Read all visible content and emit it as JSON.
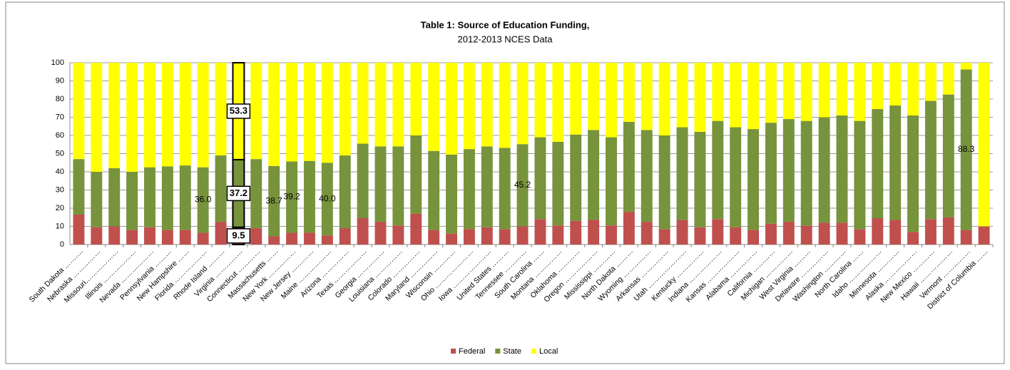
{
  "chart_data": {
    "type": "stacked-bar",
    "title": "Table 1: Source of Education Funding,",
    "subtitle": "2012-2013 NCES Data",
    "categories": [
      "South Dakota ……….",
      "Nebraska ……………",
      "Missouri………………",
      "Illinois ………………",
      "Nevada ………………",
      "Pennsylvania ………",
      "New Hampshire ……",
      "Florida ………………",
      "Rhode Island ………",
      "Virginia ……………",
      "Connecticut …………",
      "Massachusetts ……",
      "New York ……………",
      "New Jersey …………",
      "Maine ………………",
      "Arizona ……………",
      "Texas ………………",
      "Georgia ……………",
      "Louisiana ……………",
      "Colorado ……………",
      "Maryland ……………",
      "Wisconsin …………",
      "Ohio …………………",
      "Iowa …………………",
      "United States ………",
      "Tennessee …………",
      "South Carolina ……",
      "Montana ……………",
      "Oklahoma …………",
      "Oregon ………………",
      "Mississippi …………",
      "North Dakota ………",
      "Wyoming ……………",
      "Arkansas ……………",
      "Utah …………………",
      "Kentucky ……………",
      "Indiana ………………",
      "Kansas ………………",
      "Alabama ……………",
      "California …………",
      "Michigan ……………",
      "West Virginia ………",
      "Delaware ……………",
      "Washington …………",
      "North Carolina ……",
      "Idaho ………………",
      "Minnesota …………",
      "Alaska ………………",
      "New Mexico …………",
      "Hawaii ………………",
      "Vermont ……………",
      "District of Columbia ……"
    ],
    "series": [
      {
        "name": "Federal",
        "color": "#c0504d",
        "values": [
          16.5,
          9.5,
          10,
          8,
          9.5,
          8,
          8,
          6.5,
          12.5,
          9.5,
          9,
          4.5,
          6.5,
          6.5,
          5,
          9,
          14.5,
          12.5,
          10.5,
          17,
          8,
          6,
          8.5,
          9.5,
          8.5,
          10,
          14,
          10.5,
          13,
          13.5,
          10.5,
          18,
          12.5,
          8.5,
          13.5,
          9.5,
          14,
          9.5,
          8,
          11.5,
          12.5,
          10.5,
          12,
          12,
          8.5,
          14.5,
          13.5,
          7,
          14,
          15,
          8,
          10
        ],
        "value_labels": [
          null,
          null,
          null,
          null,
          null,
          null,
          null,
          null,
          null,
          "9.5",
          null,
          null,
          null,
          null,
          null,
          null,
          null,
          null,
          null,
          null,
          null,
          null,
          null,
          null,
          null,
          null,
          null,
          null,
          null,
          null,
          null,
          null,
          null,
          null,
          null,
          null,
          null,
          null,
          null,
          null,
          null,
          null,
          null,
          null,
          null,
          null,
          null,
          null,
          null,
          null,
          null,
          null
        ]
      },
      {
        "name": "State",
        "color": "#77933c",
        "values": [
          30.5,
          30.5,
          32,
          32,
          33,
          35,
          35.5,
          36,
          36.5,
          37.2,
          38,
          38.7,
          39.2,
          39.5,
          40,
          40,
          41,
          41.5,
          43.5,
          43,
          43.5,
          43.5,
          44,
          44.5,
          44.7,
          45.2,
          45,
          46,
          47.5,
          49.5,
          48.5,
          49.5,
          50.5,
          51.5,
          51,
          52.5,
          54,
          55,
          55.5,
          55.5,
          56.5,
          57.5,
          58,
          59,
          59.5,
          60,
          63,
          64,
          65,
          67.5,
          88.3,
          0
        ],
        "value_labels": [
          null,
          null,
          null,
          null,
          null,
          null,
          null,
          "36.0",
          null,
          "37.2",
          null,
          "38.7",
          "39.2",
          null,
          "40.0",
          null,
          null,
          null,
          null,
          null,
          null,
          null,
          null,
          null,
          null,
          "45.2",
          null,
          null,
          null,
          null,
          null,
          null,
          null,
          null,
          null,
          null,
          null,
          null,
          null,
          null,
          null,
          null,
          null,
          null,
          null,
          null,
          null,
          null,
          null,
          null,
          "88.3",
          null
        ]
      },
      {
        "name": "Local",
        "color": "#ffff00",
        "values": [
          53,
          60,
          58,
          60,
          57.5,
          57,
          56.5,
          57.5,
          51,
          53.3,
          53,
          56.8,
          54.3,
          54,
          55,
          51,
          44.5,
          46,
          46,
          40,
          48.5,
          50.5,
          47.5,
          46,
          46.8,
          44.8,
          41,
          43.5,
          39.5,
          37,
          41,
          32.5,
          37,
          40,
          35.5,
          38,
          32,
          35.5,
          36.5,
          33,
          31,
          32,
          30,
          29,
          32,
          25.5,
          23.5,
          29,
          21,
          17.5,
          3.7,
          90
        ],
        "value_labels": [
          null,
          null,
          null,
          null,
          null,
          null,
          null,
          null,
          null,
          "53.3",
          null,
          null,
          null,
          null,
          null,
          null,
          null,
          null,
          null,
          null,
          null,
          null,
          null,
          null,
          null,
          null,
          null,
          null,
          null,
          null,
          null,
          null,
          null,
          null,
          null,
          null,
          null,
          null,
          null,
          null,
          null,
          null,
          null,
          null,
          null,
          null,
          null,
          null,
          null,
          null,
          null,
          null
        ]
      }
    ],
    "ylim": [
      0,
      100
    ],
    "yticks": [
      0,
      10,
      20,
      30,
      40,
      50,
      60,
      70,
      80,
      90,
      100
    ],
    "grid": true,
    "legend": "bottom"
  }
}
